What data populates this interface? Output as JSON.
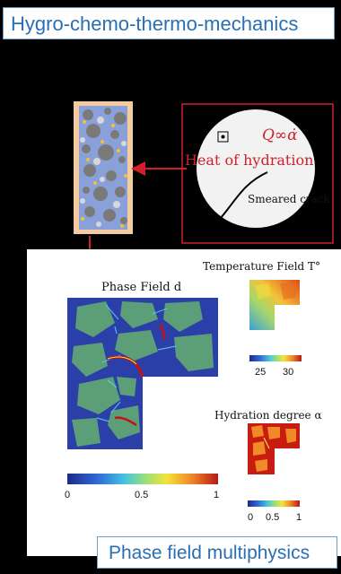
{
  "top_title": "Hygro-chemo-thermo-mechanics",
  "bottom_title": "Phase field multiphysics",
  "inset": {
    "heat_label": "Heat of hydration",
    "formula": "Q∞α̇",
    "crack_label": "Smeared crack"
  },
  "panels": {
    "phase_field": {
      "label": "Phase Field d",
      "colorbar_ticks": [
        "0",
        "0.5",
        "1"
      ]
    },
    "temperature": {
      "label": "Temperature Field T°",
      "colorbar_ticks": [
        "25",
        "30"
      ]
    },
    "hydration": {
      "label": "Hydration degree α",
      "colorbar_ticks": [
        "0",
        "0.5",
        "1"
      ]
    }
  },
  "colors": {
    "banner_text": "#2a6fb3",
    "arrow": "#d0202a",
    "crack": "#c81010",
    "aggregate": "#5b9e78",
    "matrix": "#2b3fa8"
  }
}
